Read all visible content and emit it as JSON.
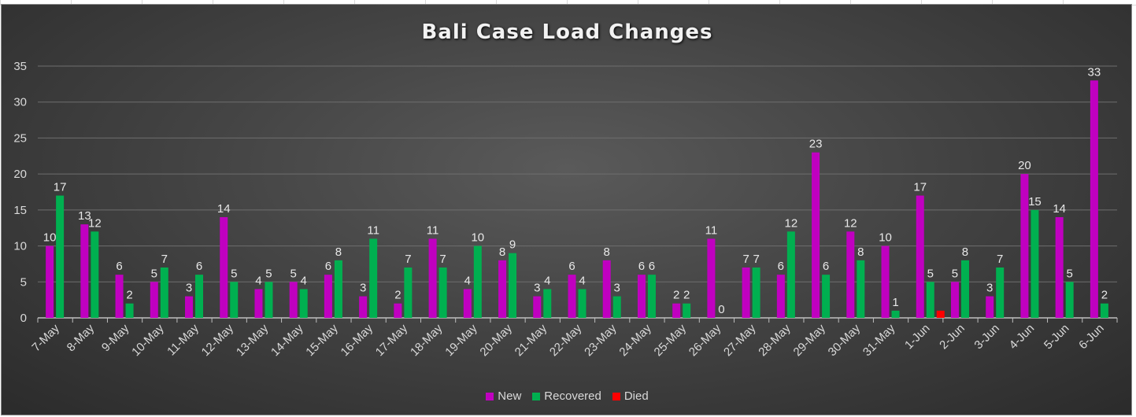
{
  "chart_data": {
    "type": "bar",
    "title": "Bali Case Load Changes",
    "categories": [
      "7-May",
      "8-May",
      "9-May",
      "10-May",
      "11-May",
      "12-May",
      "13-May",
      "14-May",
      "15-May",
      "16-May",
      "17-May",
      "18-May",
      "19-May",
      "20-May",
      "21-May",
      "22-May",
      "23-May",
      "24-May",
      "25-May",
      "26-May",
      "27-May",
      "28-May",
      "29-May",
      "30-May",
      "31-May",
      "1-Jun",
      "2-Jun",
      "3-Jun",
      "4-Jun",
      "5-Jun",
      "6-Jun"
    ],
    "series": [
      {
        "name": "New",
        "color": "#c000c0",
        "values": [
          10,
          13,
          6,
          5,
          3,
          14,
          4,
          5,
          6,
          3,
          2,
          11,
          4,
          8,
          3,
          6,
          8,
          6,
          2,
          11,
          7,
          6,
          23,
          12,
          10,
          17,
          5,
          3,
          20,
          14,
          33
        ]
      },
      {
        "name": "Recovered",
        "color": "#00b050",
        "values": [
          17,
          12,
          2,
          7,
          6,
          5,
          5,
          4,
          8,
          11,
          7,
          7,
          10,
          9,
          4,
          4,
          3,
          6,
          2,
          0,
          7,
          12,
          6,
          8,
          1,
          5,
          8,
          7,
          15,
          5,
          2
        ]
      },
      {
        "name": "Died",
        "color": "#ff0000",
        "values": [
          null,
          null,
          null,
          null,
          null,
          null,
          null,
          null,
          null,
          null,
          null,
          null,
          null,
          null,
          null,
          null,
          null,
          null,
          null,
          null,
          null,
          null,
          null,
          null,
          null,
          1,
          null,
          null,
          null,
          null,
          null
        ]
      }
    ],
    "data_labels": {
      "New": [
        10,
        13,
        6,
        5,
        3,
        14,
        4,
        5,
        6,
        3,
        2,
        11,
        4,
        8,
        3,
        6,
        8,
        6,
        2,
        11,
        7,
        6,
        23,
        12,
        10,
        17,
        5,
        3,
        20,
        14,
        33
      ],
      "Recovered": [
        17,
        12,
        2,
        7,
        6,
        5,
        5,
        4,
        8,
        11,
        7,
        7,
        10,
        9,
        4,
        4,
        3,
        6,
        2,
        0,
        7,
        12,
        6,
        8,
        1,
        5,
        8,
        7,
        15,
        5,
        2
      ]
    },
    "yticks": [
      0,
      5,
      10,
      15,
      20,
      25,
      30,
      35
    ],
    "ylim": [
      0,
      35
    ],
    "grid": true,
    "legend_position": "bottom"
  }
}
